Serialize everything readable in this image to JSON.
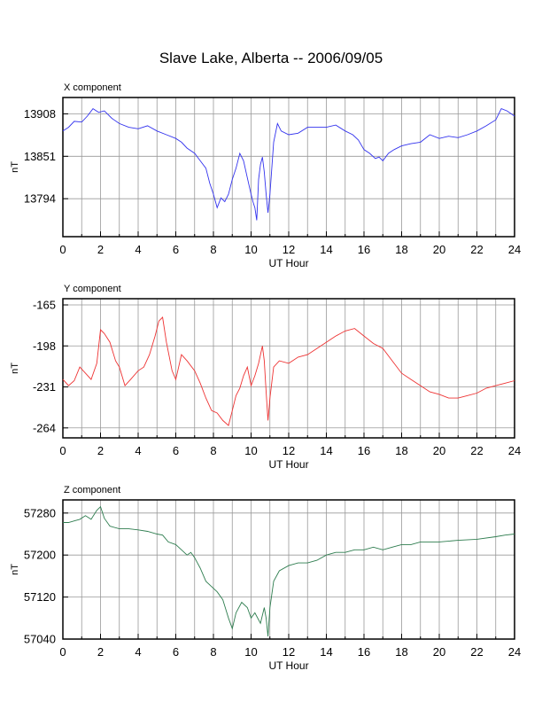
{
  "title": "Slave Lake, Alberta -- 2006/09/05",
  "chart_data": [
    {
      "type": "line",
      "title": "X component",
      "xlabel": "UT Hour",
      "ylabel": "nT",
      "xlim": [
        0,
        24
      ],
      "ylim": [
        13743,
        13930
      ],
      "xticks": [
        0,
        2,
        4,
        6,
        8,
        10,
        12,
        14,
        16,
        18,
        20,
        22,
        24
      ],
      "yticks": [
        13794,
        13851,
        13908
      ],
      "grid": true,
      "color": "#3333ee",
      "series": [
        {
          "x": [
            0,
            0.3,
            0.6,
            1.0,
            1.3,
            1.6,
            1.9,
            2.2,
            2.6,
            3.0,
            3.5,
            4.0,
            4.5,
            5.0,
            5.5,
            6.0,
            6.3,
            6.6,
            7.0,
            7.3,
            7.6,
            7.8,
            8.0,
            8.2,
            8.4,
            8.6,
            8.8,
            9.0,
            9.2,
            9.4,
            9.6,
            9.8,
            10.0,
            10.1,
            10.2,
            10.3,
            10.4,
            10.5,
            10.6,
            10.7,
            10.8,
            10.9,
            11.0,
            11.2,
            11.4,
            11.6,
            12.0,
            12.5,
            13.0,
            13.5,
            14.0,
            14.5,
            15.0,
            15.4,
            15.7,
            16.0,
            16.3,
            16.6,
            16.8,
            17.0,
            17.3,
            17.6,
            18.0,
            18.5,
            19.0,
            19.5,
            20.0,
            20.5,
            21.0,
            21.5,
            22.0,
            22.5,
            23.0,
            23.3,
            23.6,
            24.0
          ],
          "y": [
            13885,
            13890,
            13898,
            13897,
            13905,
            13915,
            13910,
            13912,
            13902,
            13895,
            13890,
            13888,
            13892,
            13885,
            13880,
            13875,
            13870,
            13862,
            13855,
            13845,
            13835,
            13815,
            13800,
            13782,
            13795,
            13790,
            13800,
            13820,
            13835,
            13855,
            13845,
            13822,
            13800,
            13790,
            13782,
            13765,
            13820,
            13840,
            13850,
            13830,
            13800,
            13775,
            13800,
            13870,
            13895,
            13885,
            13880,
            13882,
            13890,
            13890,
            13890,
            13893,
            13885,
            13880,
            13873,
            13860,
            13855,
            13848,
            13850,
            13845,
            13855,
            13860,
            13865,
            13868,
            13870,
            13880,
            13875,
            13878,
            13876,
            13880,
            13885,
            13892,
            13900,
            13915,
            13912,
            13905
          ]
        }
      ]
    },
    {
      "type": "line",
      "title": "Y component",
      "xlabel": "UT Hour",
      "ylabel": "nT",
      "xlim": [
        0,
        24
      ],
      "ylim": [
        -272,
        -160
      ],
      "xticks": [
        0,
        2,
        4,
        6,
        8,
        10,
        12,
        14,
        16,
        18,
        20,
        22,
        24
      ],
      "yticks": [
        -165,
        -198,
        -231,
        -264
      ],
      "grid": true,
      "color": "#ee3333",
      "series": [
        {
          "x": [
            0,
            0.3,
            0.6,
            0.9,
            1.2,
            1.5,
            1.8,
            2.0,
            2.2,
            2.5,
            2.8,
            3.0,
            3.3,
            3.6,
            4.0,
            4.3,
            4.6,
            4.9,
            5.1,
            5.3,
            5.5,
            5.8,
            6.0,
            6.3,
            6.6,
            7.0,
            7.3,
            7.6,
            7.9,
            8.2,
            8.5,
            8.8,
            9.0,
            9.2,
            9.4,
            9.6,
            9.8,
            10.0,
            10.2,
            10.4,
            10.6,
            10.7,
            10.8,
            10.9,
            11.0,
            11.2,
            11.5,
            12.0,
            12.5,
            13.0,
            13.5,
            14.0,
            14.5,
            15.0,
            15.5,
            16.0,
            16.5,
            17.0,
            17.5,
            18.0,
            18.5,
            19.0,
            19.5,
            20.0,
            20.5,
            21.0,
            21.5,
            22.0,
            22.5,
            23.0,
            23.5,
            24.0
          ],
          "y": [
            -225,
            -230,
            -226,
            -215,
            -220,
            -225,
            -212,
            -185,
            -188,
            -195,
            -210,
            -215,
            -230,
            -225,
            -218,
            -215,
            -205,
            -190,
            -178,
            -175,
            -195,
            -218,
            -225,
            -205,
            -210,
            -218,
            -228,
            -240,
            -250,
            -252,
            -258,
            -262,
            -250,
            -238,
            -232,
            -222,
            -215,
            -230,
            -222,
            -212,
            -198,
            -210,
            -235,
            -258,
            -240,
            -215,
            -210,
            -212,
            -207,
            -205,
            -200,
            -195,
            -190,
            -186,
            -184,
            -190,
            -196,
            -200,
            -210,
            -220,
            -225,
            -230,
            -235,
            -237,
            -240,
            -240,
            -238,
            -236,
            -232,
            -230,
            -228,
            -226
          ]
        }
      ]
    },
    {
      "type": "line",
      "title": "Z component",
      "xlabel": "UT Hour",
      "ylabel": "nT",
      "xlim": [
        0,
        24
      ],
      "ylim": [
        57040,
        57305
      ],
      "xticks": [
        0,
        2,
        4,
        6,
        8,
        10,
        12,
        14,
        16,
        18,
        20,
        22,
        24
      ],
      "yticks": [
        57040,
        57120,
        57200,
        57280
      ],
      "grid": true,
      "color": "#2e7d4f",
      "series": [
        {
          "x": [
            0,
            0.3,
            0.6,
            0.9,
            1.2,
            1.5,
            1.8,
            2.0,
            2.2,
            2.5,
            3.0,
            3.5,
            4.0,
            4.5,
            5.0,
            5.3,
            5.6,
            6.0,
            6.3,
            6.6,
            6.8,
            7.0,
            7.3,
            7.6,
            7.9,
            8.2,
            8.5,
            8.8,
            9.0,
            9.2,
            9.5,
            9.8,
            10.0,
            10.2,
            10.5,
            10.7,
            10.8,
            10.9,
            11.0,
            11.2,
            11.5,
            12.0,
            12.5,
            13.0,
            13.5,
            14.0,
            14.5,
            15.0,
            15.5,
            16.0,
            16.5,
            17.0,
            17.5,
            18.0,
            18.5,
            19.0,
            20.0,
            21.0,
            22.0,
            23.0,
            23.5,
            24.0
          ],
          "y": [
            57262,
            57262,
            57265,
            57268,
            57275,
            57268,
            57285,
            57292,
            57270,
            57255,
            57250,
            57250,
            57248,
            57245,
            57240,
            57238,
            57225,
            57220,
            57210,
            57200,
            57205,
            57195,
            57175,
            57150,
            57140,
            57130,
            57115,
            57080,
            57060,
            57090,
            57110,
            57100,
            57080,
            57090,
            57070,
            57100,
            57080,
            57045,
            57100,
            57150,
            57170,
            57180,
            57185,
            57185,
            57190,
            57200,
            57205,
            57205,
            57210,
            57210,
            57215,
            57210,
            57215,
            57220,
            57220,
            57225,
            57225,
            57228,
            57230,
            57235,
            57238,
            57240
          ]
        }
      ]
    }
  ]
}
